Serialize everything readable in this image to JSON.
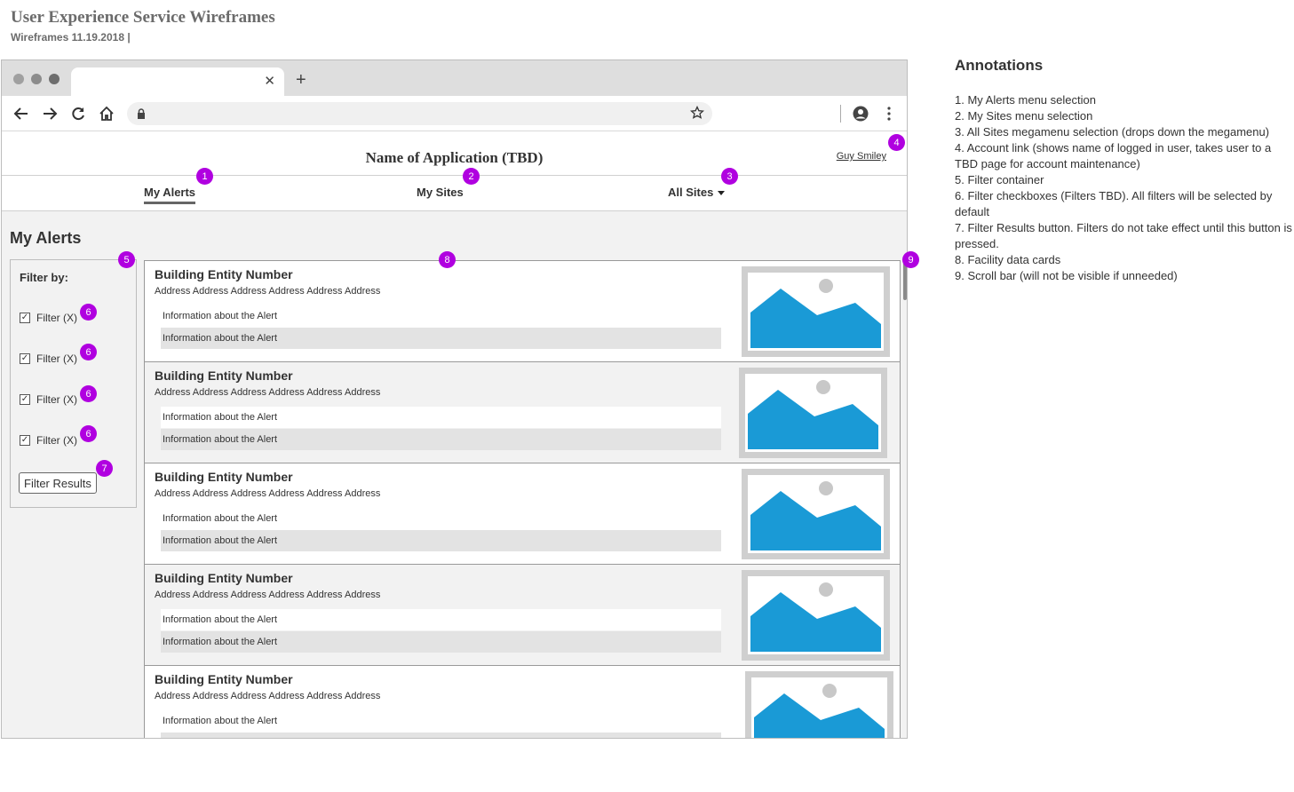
{
  "document": {
    "title": "User Experience Service Wireframes",
    "subtitle": "Wireframes 11.19.2018 |"
  },
  "browser": {
    "tab_close": "✕",
    "new_tab": "+"
  },
  "app": {
    "name": "Name of Application (TBD)",
    "account_link": "Guy Smiley",
    "nav": {
      "my_alerts": "My Alerts",
      "my_sites": "My Sites",
      "all_sites": "All Sites"
    },
    "page_title": "My Alerts"
  },
  "filters": {
    "heading": "Filter by:",
    "items": [
      {
        "label": "Filter (X)",
        "checked": true
      },
      {
        "label": "Filter (X)",
        "checked": true
      },
      {
        "label": "Filter (X)",
        "checked": true
      },
      {
        "label": "Filter (X)",
        "checked": true
      }
    ],
    "button_label": "Filter Results"
  },
  "cards": [
    {
      "title": "Building Entity Number",
      "address": "Address Address Address Address Address Address",
      "info1": "Information about the Alert",
      "info2": "Information about the Alert"
    },
    {
      "title": "Building Entity Number",
      "address": "Address Address Address Address Address Address",
      "info1": "Information about the Alert",
      "info2": "Information about the Alert"
    },
    {
      "title": "Building Entity Number",
      "address": "Address Address Address Address Address Address",
      "info1": "Information about the Alert",
      "info2": "Information about the Alert"
    },
    {
      "title": "Building Entity Number",
      "address": "Address Address Address Address Address Address",
      "info1": "Information about the Alert",
      "info2": "Information about the Alert"
    },
    {
      "title": "Building Entity Number",
      "address": "Address Address Address Address Address Address",
      "info1": "Information about the Alert",
      "info2": ""
    }
  ],
  "badges": [
    "1",
    "2",
    "3",
    "4",
    "5",
    "6",
    "7",
    "8",
    "9"
  ],
  "annotations": {
    "title": "Annotations",
    "items": [
      "1. My Alerts menu selection",
      "2. My Sites menu selection",
      "3. All Sites megamenu selection (drops down the megamenu)",
      "4. Account link (shows name of logged in user, takes user to a TBD page for account maintenance)",
      "5. Filter container",
      "6. Filter checkboxes (Filters TBD). All filters will be selected by default",
      "7. Filter Results button. Filters do not take effect until this button is pressed.",
      "8. Facility data cards",
      "9. Scroll bar (will not be visible if unneeded)"
    ]
  },
  "colors": {
    "badge": "#b000e0",
    "image_placeholder": "#1a9ad6",
    "image_frame": "#cfcfcf"
  },
  "icons": [
    "back-arrow-icon",
    "forward-arrow-icon",
    "reload-icon",
    "home-icon",
    "lock-icon",
    "star-icon",
    "account-circle-icon",
    "kebab-menu-icon",
    "close-icon",
    "plus-icon",
    "caret-down-icon",
    "checkbox-checked-icon",
    "image-placeholder-icon"
  ]
}
